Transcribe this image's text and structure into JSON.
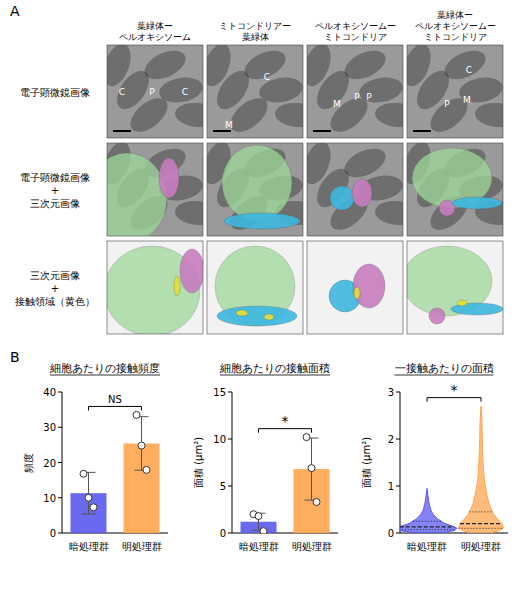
{
  "figure": {
    "panel_labels": [
      "A",
      "B"
    ],
    "columns": [
      [
        "葉緑体ー",
        "ペルオキシソーム"
      ],
      [
        "ミトコンドリアー",
        "葉緑体"
      ],
      [
        "ペルオキシソームー",
        "ミトコンドリア"
      ],
      [
        "葉緑体ー",
        "ペルオキシソームー",
        "ミトコンドリア"
      ]
    ],
    "rows": [
      [
        "電子顕微鏡画像"
      ],
      [
        "電子顕微鏡画像",
        "+",
        "三次元画像"
      ],
      [
        "三次元画像",
        "+",
        "接触領域（黄色）"
      ]
    ],
    "em_labels": [
      [
        "C",
        "P",
        "C"
      ],
      [
        "C",
        "M"
      ],
      [
        "M",
        "P",
        "P"
      ],
      [
        "C",
        "P",
        "M"
      ]
    ]
  },
  "chart_data": [
    {
      "type": "bar",
      "title": "細胞あたりの接触頻度",
      "ylabel": "頻度",
      "categories": [
        "暗処理群",
        "明処理群"
      ],
      "values": [
        11.3,
        25.4
      ],
      "errors": [
        5.9,
        7.6
      ],
      "points": [
        [
          16.8,
          10,
          7.3
        ],
        [
          33.5,
          24.8,
          17.9
        ]
      ],
      "colors": [
        "#5a5af0",
        "#ffa54f"
      ],
      "ylim": [
        0,
        40
      ],
      "yticks": [
        0,
        10,
        20,
        30,
        40
      ],
      "significance": "NS"
    },
    {
      "type": "bar",
      "title": "細胞あたりの接触面積",
      "ylabel": "面積 (μm²)",
      "categories": [
        "暗処理群",
        "明処理群"
      ],
      "values": [
        1.2,
        6.8
      ],
      "errors": [
        0.9,
        3.3
      ],
      "points": [
        [
          2.0,
          1.8,
          0.2
        ],
        [
          10.2,
          6.9,
          3.3
        ]
      ],
      "colors": [
        "#5a5af0",
        "#ffa54f"
      ],
      "ylim": [
        0,
        15
      ],
      "yticks": [
        0,
        5,
        10,
        15
      ],
      "significance": "*"
    },
    {
      "type": "violin",
      "title": "一接触あたりの面積",
      "ylabel": "面積 (μm²)",
      "categories": [
        "暗処理群",
        "明処理群"
      ],
      "colors": [
        "#5a5af0",
        "#ffa54f"
      ],
      "ylim": [
        0,
        3
      ],
      "yticks": [
        0,
        1,
        2,
        3
      ],
      "significance": "*",
      "violins": [
        {
          "density_y": [
            0,
            0.05,
            0.1,
            0.15,
            0.2,
            0.3,
            0.4,
            0.5,
            0.6,
            0.7,
            0.8,
            0.95
          ],
          "density": [
            0.4,
            0.9,
            1,
            0.85,
            0.6,
            0.35,
            0.2,
            0.12,
            0.08,
            0.05,
            0.03,
            0
          ],
          "median": 0.13,
          "quartiles": [
            0.07,
            0.25
          ]
        },
        {
          "density_y": [
            0,
            0.05,
            0.1,
            0.2,
            0.3,
            0.4,
            0.6,
            0.8,
            1,
            1.2,
            1.5,
            1.8,
            2.1,
            2.4,
            2.7
          ],
          "density": [
            0.3,
            0.6,
            0.75,
            0.7,
            0.55,
            0.42,
            0.28,
            0.2,
            0.14,
            0.1,
            0.07,
            0.05,
            0.04,
            0.03,
            0
          ],
          "median": 0.2,
          "quartiles": [
            0.1,
            0.45
          ]
        }
      ]
    }
  ]
}
